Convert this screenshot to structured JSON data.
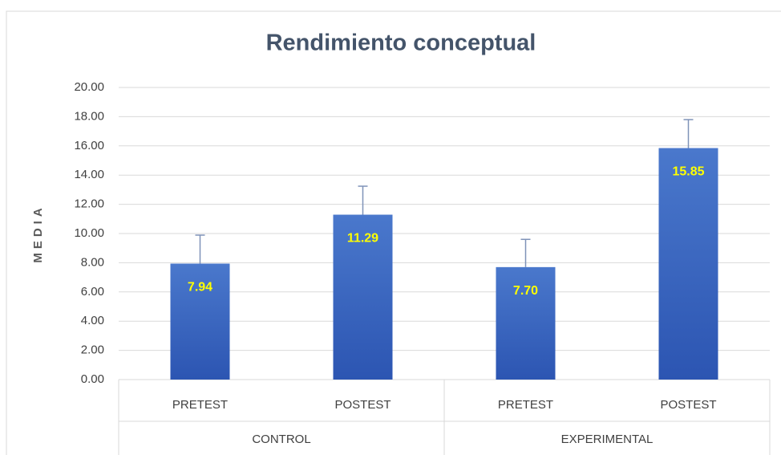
{
  "chart_data": {
    "type": "bar",
    "title": "Rendimiento conceptual",
    "y_label": "MEDIA",
    "categories": [
      "PRETEST",
      "POSTEST",
      "PRETEST",
      "POSTEST"
    ],
    "groups": [
      "CONTROL",
      "EXPERIMENTAL"
    ],
    "values": [
      7.94,
      11.29,
      7.7,
      15.85
    ],
    "value_labels": [
      "7.94",
      "11.29",
      "7.70",
      "15.85"
    ],
    "errors": [
      1.95,
      1.95,
      1.9,
      1.95
    ],
    "color": "#4472c4",
    "label_color": "#ffff00",
    "ylim": [
      0,
      20
    ],
    "yticks": [
      {
        "value": 0,
        "label": "0.00"
      },
      {
        "value": 2,
        "label": "2.00"
      },
      {
        "value": 4,
        "label": "4.00"
      },
      {
        "value": 6,
        "label": "6.00"
      },
      {
        "value": 8,
        "label": "8.00"
      },
      {
        "value": 10,
        "label": "10.00"
      },
      {
        "value": 12,
        "label": "12.00"
      },
      {
        "value": 14,
        "label": "14.00"
      },
      {
        "value": 16,
        "label": "16.00"
      },
      {
        "value": 18,
        "label": "18.00"
      },
      {
        "value": 20,
        "label": "20.00"
      }
    ],
    "grid": true
  }
}
